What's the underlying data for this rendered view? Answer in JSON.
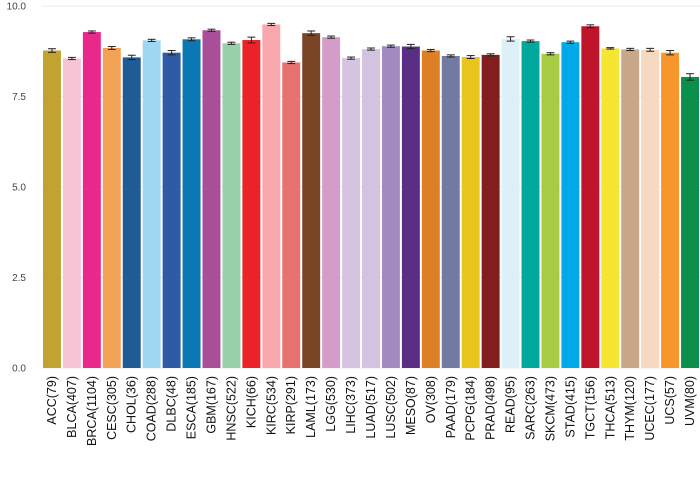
{
  "chart_data": {
    "type": "bar",
    "title": "",
    "xlabel": "",
    "ylabel": "",
    "ylim": [
      0,
      10
    ],
    "yticks": [
      "0.0",
      "2.5",
      "5.0",
      "7.5",
      "10.0"
    ],
    "grid": true,
    "legend": "none",
    "categories": [
      "ACC(79)",
      "BLCA(407)",
      "BRCA(1104)",
      "CESC(305)",
      "CHOL(36)",
      "COAD(288)",
      "DLBC(48)",
      "ESCA(185)",
      "GBM(167)",
      "HNSC(522)",
      "KICH(66)",
      "KIRC(534)",
      "KIRP(291)",
      "LAML(173)",
      "LGG(530)",
      "LIHC(373)",
      "LUAD(517)",
      "LUSC(502)",
      "MESO(87)",
      "OV(308)",
      "PAAD(179)",
      "PCPG(184)",
      "PRAD(498)",
      "READ(95)",
      "SARC(263)",
      "SKCM(473)",
      "STAD(415)",
      "TGCT(156)",
      "THCA(513)",
      "THYM(120)",
      "UCEC(177)",
      "UCS(57)",
      "UVM(80)"
    ],
    "values": [
      8.77,
      8.55,
      9.28,
      8.84,
      8.58,
      9.05,
      8.71,
      9.08,
      9.33,
      8.97,
      9.06,
      9.49,
      8.44,
      9.25,
      9.14,
      8.56,
      8.81,
      8.89,
      8.88,
      8.77,
      8.62,
      8.59,
      8.65,
      9.09,
      9.03,
      8.68,
      9.0,
      9.44,
      8.83,
      8.8,
      8.79,
      8.71,
      8.04
    ],
    "errors": [
      0.05,
      0.03,
      0.03,
      0.04,
      0.06,
      0.03,
      0.06,
      0.04,
      0.03,
      0.03,
      0.08,
      0.03,
      0.03,
      0.06,
      0.03,
      0.03,
      0.03,
      0.03,
      0.06,
      0.03,
      0.03,
      0.04,
      0.03,
      0.06,
      0.03,
      0.03,
      0.03,
      0.04,
      0.02,
      0.03,
      0.04,
      0.06,
      0.09
    ],
    "colors": [
      "#C2A332",
      "#F6C4D4",
      "#E8288B",
      "#F3A255",
      "#1F5B94",
      "#9FD7F3",
      "#2E5AA6",
      "#0B77B3",
      "#AB4E9A",
      "#98D1A8",
      "#EB2228",
      "#F8A8AD",
      "#E77070",
      "#794525",
      "#D39CC9",
      "#D5C3E0",
      "#D4C3E0",
      "#A18BC1",
      "#5B2E86",
      "#DD7F25",
      "#727B9F",
      "#E8C51C",
      "#821E1E",
      "#DDEFF7",
      "#02A89E",
      "#A7CB43",
      "#02A9E8",
      "#C0142A",
      "#F7E631",
      "#C9A889",
      "#F6D9BF",
      "#F7962A",
      "#0A904A"
    ]
  }
}
